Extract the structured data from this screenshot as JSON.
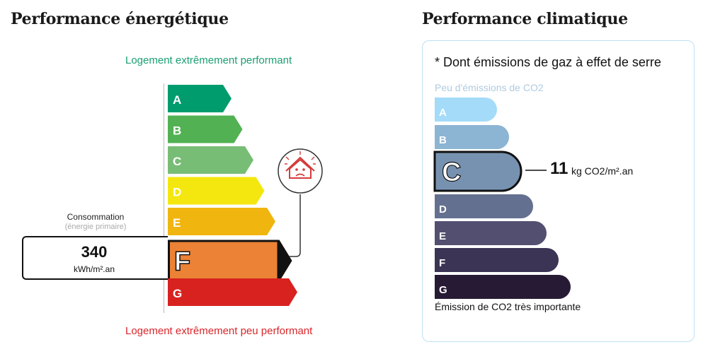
{
  "energy": {
    "title": "Performance énergétique",
    "top_label": "Logement extrêmement performant",
    "bottom_label": "Logement extrêmement peu performant",
    "consumption_label": "Consommation",
    "consumption_sub": "(énergie primaire)",
    "consumption_value": "340",
    "consumption_unit": "kWh/m².an",
    "active_class": "F",
    "icon": "sad-house-icon",
    "classes": [
      {
        "letter": "A",
        "color": "#009c6d"
      },
      {
        "letter": "B",
        "color": "#52b153"
      },
      {
        "letter": "C",
        "color": "#78bd76"
      },
      {
        "letter": "D",
        "color": "#f4e70f"
      },
      {
        "letter": "E",
        "color": "#f0b50f"
      },
      {
        "letter": "F",
        "color": "#eb8235"
      },
      {
        "letter": "G",
        "color": "#d7221f"
      }
    ]
  },
  "climate": {
    "title": "Performance climatique",
    "note": "* Dont émissions de gaz à effet de serre",
    "top_label": "Peu d'émissions de CO2",
    "bottom_label": "Émission de CO2 très importante",
    "emission_value": "11",
    "emission_unit": "kg CO2/m².an",
    "active_class": "C",
    "classes": [
      {
        "letter": "A",
        "color": "#a4dbf8"
      },
      {
        "letter": "B",
        "color": "#8cb4d3"
      },
      {
        "letter": "C",
        "color": "#7792b1"
      },
      {
        "letter": "D",
        "color": "#64708f"
      },
      {
        "letter": "E",
        "color": "#524f70"
      },
      {
        "letter": "F",
        "color": "#3c3454"
      },
      {
        "letter": "G",
        "color": "#271a35"
      }
    ]
  }
}
